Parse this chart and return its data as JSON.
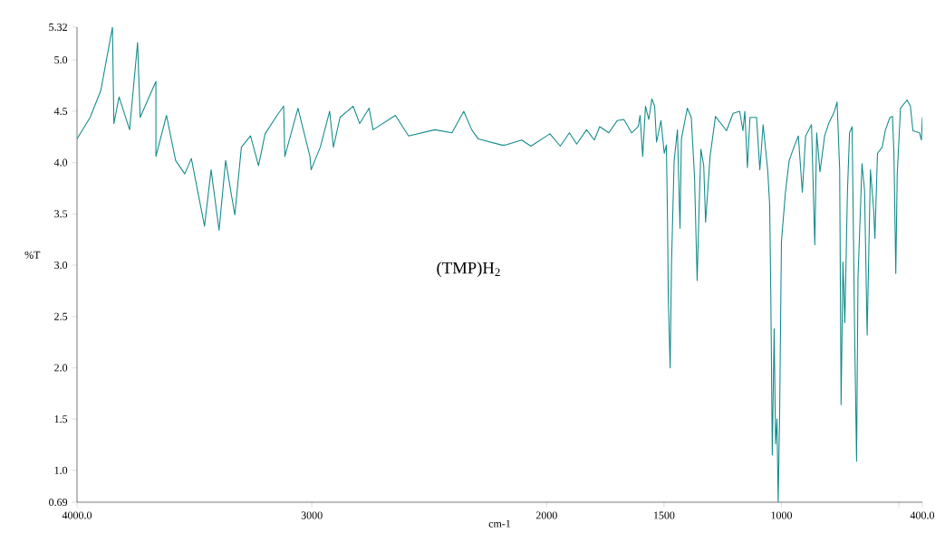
{
  "chart_data": {
    "type": "line",
    "xlabel": "cm-1",
    "ylabel": "%T",
    "annotations": [
      "(TMP)H$_{2}$"
    ],
    "x": [
      4000,
      3944,
      3899,
      3849,
      3843,
      3821,
      3776,
      3742,
      3731,
      3664,
      3664,
      3619,
      3580,
      3541,
      3513,
      3485,
      3457,
      3429,
      3395,
      3367,
      3328,
      3300,
      3261,
      3227,
      3199,
      3148,
      3120,
      3115,
      3059,
      3008,
      3003,
      2964,
      2924,
      2908,
      2880,
      2824,
      2796,
      2756,
      2739,
      2644,
      2588,
      2476,
      2403,
      2353,
      2319,
      2291,
      2190,
      2179,
      2106,
      2067,
      1986,
      1942,
      1903,
      1872,
      1830,
      1797,
      1774,
      1735,
      1699,
      1671,
      1638,
      1610,
      1602,
      1591,
      1579,
      1565,
      1552,
      1540,
      1532,
      1513,
      1499,
      1490,
      1485,
      1482,
      1474,
      1468,
      1457,
      1443,
      1432,
      1426,
      1401,
      1384,
      1370,
      1359,
      1351,
      1343,
      1331,
      1323,
      1304,
      1281,
      1234,
      1206,
      1178,
      1164,
      1156,
      1145,
      1134,
      1106,
      1092,
      1078,
      1058,
      1050,
      1045,
      1039,
      1031,
      1025,
      1019,
      1014,
      1008,
      1000,
      983,
      967,
      947,
      928,
      911,
      897,
      872,
      858,
      850,
      836,
      816,
      799,
      774,
      763,
      752,
      746,
      738,
      730,
      719,
      710,
      699,
      688,
      680,
      674,
      663,
      657,
      646,
      635,
      621,
      607,
      602,
      591,
      571,
      557,
      538,
      527,
      521,
      513,
      507,
      493,
      465,
      451,
      440,
      412,
      404,
      400
    ],
    "series": [
      {
        "color": "#138a8a",
        "values": [
          4.23,
          4.44,
          4.7,
          5.32,
          4.38,
          4.64,
          4.32,
          5.17,
          4.44,
          4.79,
          4.06,
          4.46,
          4.02,
          3.89,
          4.04,
          3.71,
          3.38,
          3.93,
          3.34,
          4.02,
          3.49,
          4.15,
          4.26,
          3.97,
          4.28,
          4.46,
          4.55,
          4.06,
          4.53,
          4.06,
          3.93,
          4.15,
          4.5,
          4.15,
          4.44,
          4.55,
          4.38,
          4.53,
          4.32,
          4.46,
          4.26,
          4.32,
          4.29,
          4.5,
          4.32,
          4.23,
          4.17,
          4.17,
          4.22,
          4.16,
          4.28,
          4.16,
          4.29,
          4.18,
          4.32,
          4.22,
          4.35,
          4.29,
          4.41,
          4.42,
          4.29,
          4.35,
          4.46,
          4.06,
          4.55,
          4.42,
          4.62,
          4.55,
          4.2,
          4.41,
          4.09,
          4.17,
          3.41,
          2.7,
          2.0,
          3.03,
          4.02,
          4.32,
          3.36,
          4.23,
          4.53,
          4.44,
          3.85,
          2.85,
          3.53,
          4.13,
          3.97,
          3.42,
          4.06,
          4.45,
          4.31,
          4.48,
          4.5,
          4.31,
          4.5,
          3.95,
          4.44,
          4.44,
          3.93,
          4.37,
          3.91,
          3.58,
          2.65,
          1.15,
          2.38,
          1.26,
          1.5,
          0.69,
          1.5,
          3.23,
          3.71,
          4.02,
          4.15,
          4.26,
          3.71,
          4.26,
          4.37,
          3.2,
          4.29,
          3.91,
          4.26,
          4.38,
          4.5,
          4.59,
          3.93,
          1.64,
          3.03,
          2.44,
          3.71,
          4.29,
          4.35,
          2.29,
          1.09,
          2.88,
          3.58,
          3.99,
          3.73,
          2.32,
          3.93,
          3.53,
          3.26,
          4.09,
          4.15,
          4.32,
          4.44,
          4.45,
          4.09,
          2.92,
          3.88,
          4.53,
          4.61,
          4.55,
          4.31,
          4.29,
          4.22,
          4.44
        ]
      }
    ],
    "xlim": [
      4000,
      400
    ],
    "ylim": [
      0.69,
      5.32
    ],
    "xticks": [
      {
        "value": 4000,
        "label": "4000.0"
      },
      3000,
      2000,
      1500,
      1000,
      {
        "value": 500,
        "label": null
      },
      {
        "value": 400,
        "label": "400.0"
      }
    ],
    "yticks": [
      0.69,
      {
        "value": 1,
        "label": "1.0"
      },
      1.5,
      {
        "value": 2,
        "label": "2.0"
      },
      2.5,
      {
        "value": 3,
        "label": "3.0"
      },
      3.5,
      {
        "value": 4,
        "label": "4.0"
      },
      4.5,
      {
        "value": 5,
        "label": "5.0"
      },
      5.32
    ],
    "line_style": "solid"
  }
}
